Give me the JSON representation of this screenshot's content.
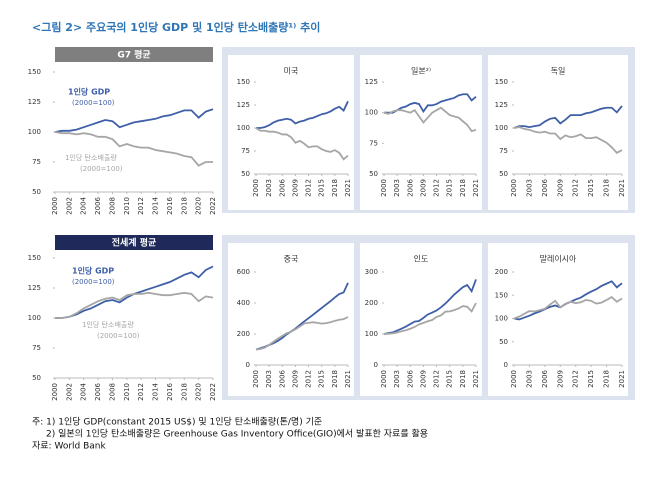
{
  "title": "<그림 2> 주요국의 1인당 GDP 및 1인당 탄소배출량¹⁾ 추이",
  "notes": [
    "주: 1) 1인당 GDP(constant 2015 US$) 및 1인당 탄소배출량(톤/명) 기준",
    "2) 일본의 1인당 탄소배출량은 Greenhouse Gas Inventory Office(GIO)에서 발표한 자료를 활용",
    "자료: World Bank"
  ],
  "chart_data": [
    {
      "type": "line",
      "title": "G7 평균",
      "x": [
        2000,
        2001,
        2002,
        2003,
        2004,
        2005,
        2006,
        2007,
        2008,
        2009,
        2010,
        2011,
        2012,
        2013,
        2014,
        2015,
        2016,
        2017,
        2018,
        2019,
        2020,
        2021,
        2022
      ],
      "xlim": [
        2000,
        2022
      ],
      "xticks": [
        2000,
        2002,
        2004,
        2006,
        2008,
        2010,
        2012,
        2014,
        2016,
        2018,
        2020,
        2022
      ],
      "ylim": [
        50,
        150
      ],
      "yticks": [
        50,
        75,
        100,
        125,
        150
      ],
      "series": [
        {
          "name": "1인당 GDP",
          "color": "#3f5fa8",
          "values": [
            100,
            101,
            101,
            102,
            104,
            106,
            108,
            110,
            109,
            104,
            106,
            108,
            109,
            110,
            111,
            113,
            114,
            116,
            118,
            118,
            112,
            117,
            119
          ]
        },
        {
          "name": "1인당 탄소배출량",
          "color": "#a6a6a6",
          "values": [
            100,
            99,
            99,
            98,
            99,
            98,
            96,
            96,
            94,
            88,
            90,
            88,
            87,
            87,
            85,
            84,
            83,
            82,
            80,
            79,
            72,
            75,
            75
          ]
        }
      ],
      "annotations": [
        "1인당 GDP",
        "(2000=100)",
        "1인당 탄소배출량",
        "(2000=100)"
      ]
    },
    {
      "type": "line",
      "title": "전세계 평균",
      "x": [
        2000,
        2001,
        2002,
        2003,
        2004,
        2005,
        2006,
        2007,
        2008,
        2009,
        2010,
        2011,
        2012,
        2013,
        2014,
        2015,
        2016,
        2017,
        2018,
        2019,
        2020,
        2021,
        2022
      ],
      "xlim": [
        2000,
        2022
      ],
      "xticks": [
        2000,
        2002,
        2004,
        2006,
        2008,
        2010,
        2012,
        2014,
        2016,
        2018,
        2020,
        2022
      ],
      "ylim": [
        50,
        150
      ],
      "yticks": [
        50,
        75,
        100,
        125,
        150
      ],
      "series": [
        {
          "name": "1인당 GDP",
          "color": "#3f5fa8",
          "values": [
            100,
            100,
            101,
            103,
            106,
            108,
            111,
            114,
            115,
            113,
            117,
            120,
            122,
            124,
            126,
            128,
            130,
            133,
            136,
            138,
            134,
            140,
            143
          ]
        },
        {
          "name": "1인당 탄소배출량",
          "color": "#a6a6a6",
          "values": [
            100,
            100,
            101,
            104,
            108,
            111,
            114,
            116,
            117,
            115,
            119,
            120,
            120,
            121,
            120,
            119,
            119,
            120,
            121,
            120,
            114,
            118,
            117
          ]
        }
      ],
      "annotations": [
        "1인당 GDP",
        "(2000=100)",
        "1인당 탄소배출량",
        "(2000=100)"
      ]
    },
    {
      "type": "line",
      "title": "미국",
      "x": [
        2000,
        2001,
        2002,
        2003,
        2004,
        2005,
        2006,
        2007,
        2008,
        2009,
        2010,
        2011,
        2012,
        2013,
        2014,
        2015,
        2016,
        2017,
        2018,
        2019,
        2020,
        2021
      ],
      "xlim": [
        2000,
        2021
      ],
      "xticks": [
        2000,
        2003,
        2006,
        2009,
        2012,
        2015,
        2018,
        2021
      ],
      "ylim": [
        50,
        150
      ],
      "yticks": [
        50,
        75,
        100,
        125,
        150
      ],
      "series": [
        {
          "name": "1인당 GDP",
          "color": "#3f5fa8",
          "values": [
            100,
            100,
            101,
            103,
            106,
            108,
            109,
            110,
            109,
            105,
            107,
            108,
            110,
            111,
            113,
            115,
            116,
            118,
            121,
            123,
            119,
            129
          ]
        },
        {
          "name": "1인당 탄소배출량",
          "color": "#a6a6a6",
          "values": [
            100,
            97,
            97,
            96,
            96,
            95,
            93,
            93,
            90,
            84,
            86,
            83,
            79,
            80,
            80,
            77,
            75,
            74,
            76,
            73,
            66,
            70
          ]
        }
      ]
    },
    {
      "type": "line",
      "title": "일본²⁾",
      "x": [
        2000,
        2001,
        2002,
        2003,
        2004,
        2005,
        2006,
        2007,
        2008,
        2009,
        2010,
        2011,
        2012,
        2013,
        2014,
        2015,
        2016,
        2017,
        2018,
        2019,
        2020,
        2021
      ],
      "xlim": [
        2000,
        2021
      ],
      "xticks": [
        2000,
        2003,
        2006,
        2009,
        2012,
        2015,
        2018,
        2021
      ],
      "ylim": [
        50,
        125
      ],
      "yticks": [
        50,
        75,
        100,
        125
      ],
      "series": [
        {
          "name": "1인당 GDP",
          "color": "#3f5fa8",
          "values": [
            100,
            100,
            100,
            102,
            104,
            105,
            107,
            108,
            107,
            101,
            106,
            106,
            107,
            109,
            110,
            111,
            112,
            114,
            115,
            115,
            110,
            113
          ]
        },
        {
          "name": "1인당 탄소배출량",
          "color": "#a6a6a6",
          "values": [
            100,
            99,
            101,
            102,
            102,
            101,
            100,
            102,
            97,
            92,
            96,
            100,
            102,
            104,
            101,
            98,
            97,
            96,
            93,
            90,
            85,
            86
          ]
        }
      ]
    },
    {
      "type": "line",
      "title": "독일",
      "x": [
        2000,
        2001,
        2002,
        2003,
        2004,
        2005,
        2006,
        2007,
        2008,
        2009,
        2010,
        2011,
        2012,
        2013,
        2014,
        2015,
        2016,
        2017,
        2018,
        2019,
        2020,
        2021
      ],
      "xlim": [
        2000,
        2021
      ],
      "xticks": [
        2000,
        2003,
        2006,
        2009,
        2012,
        2015,
        2018,
        2021
      ],
      "ylim": [
        50,
        150
      ],
      "yticks": [
        50,
        75,
        100,
        125,
        150
      ],
      "series": [
        {
          "name": "1인당 GDP",
          "color": "#3f5fa8",
          "values": [
            100,
            102,
            102,
            101,
            102,
            103,
            107,
            110,
            111,
            105,
            109,
            114,
            114,
            114,
            116,
            117,
            119,
            121,
            122,
            122,
            117,
            124
          ]
        },
        {
          "name": "1인당 탄소배출량",
          "color": "#a6a6a6",
          "values": [
            100,
            101,
            99,
            98,
            96,
            95,
            96,
            94,
            94,
            88,
            92,
            90,
            91,
            93,
            89,
            89,
            90,
            87,
            84,
            79,
            73,
            76
          ]
        }
      ]
    },
    {
      "type": "line",
      "title": "중국",
      "x": [
        2000,
        2001,
        2002,
        2003,
        2004,
        2005,
        2006,
        2007,
        2008,
        2009,
        2010,
        2011,
        2012,
        2013,
        2014,
        2015,
        2016,
        2017,
        2018,
        2019,
        2020,
        2021
      ],
      "xlim": [
        2000,
        2021
      ],
      "xticks": [
        2000,
        2003,
        2006,
        2009,
        2012,
        2015,
        2018,
        2021
      ],
      "ylim": [
        0,
        600
      ],
      "yticks": [
        0,
        200,
        400,
        600
      ],
      "series": [
        {
          "name": "1인당 GDP",
          "color": "#3f5fa8",
          "values": [
            100,
            108,
            117,
            129,
            141,
            156,
            175,
            198,
            216,
            235,
            258,
            281,
            302,
            324,
            346,
            368,
            390,
            412,
            436,
            458,
            468,
            530
          ]
        },
        {
          "name": "1인당 탄소배출량",
          "color": "#a6a6a6",
          "values": [
            100,
            103,
            112,
            130,
            150,
            170,
            188,
            205,
            215,
            230,
            248,
            268,
            272,
            276,
            272,
            267,
            270,
            276,
            285,
            292,
            296,
            310
          ]
        }
      ]
    },
    {
      "type": "line",
      "title": "인도",
      "x": [
        2000,
        2001,
        2002,
        2003,
        2004,
        2005,
        2006,
        2007,
        2008,
        2009,
        2010,
        2011,
        2012,
        2013,
        2014,
        2015,
        2016,
        2017,
        2018,
        2019,
        2020,
        2021
      ],
      "xlim": [
        2000,
        2021
      ],
      "xticks": [
        2000,
        2003,
        2006,
        2009,
        2012,
        2015,
        2018,
        2021
      ],
      "ylim": [
        0,
        300
      ],
      "yticks": [
        0,
        100,
        200,
        300
      ],
      "series": [
        {
          "name": "1인당 GDP",
          "color": "#3f5fa8",
          "values": [
            100,
            103,
            105,
            111,
            117,
            124,
            132,
            140,
            142,
            152,
            163,
            169,
            176,
            186,
            198,
            212,
            227,
            239,
            251,
            258,
            238,
            276
          ]
        },
        {
          "name": "1인당 탄소배출량",
          "color": "#a6a6a6",
          "values": [
            100,
            101,
            102,
            105,
            109,
            112,
            117,
            123,
            131,
            136,
            141,
            145,
            155,
            160,
            172,
            173,
            177,
            182,
            190,
            188,
            173,
            200
          ]
        }
      ]
    },
    {
      "type": "line",
      "title": "말레이시아",
      "x": [
        2000,
        2001,
        2002,
        2003,
        2004,
        2005,
        2006,
        2007,
        2008,
        2009,
        2010,
        2011,
        2012,
        2013,
        2014,
        2015,
        2016,
        2017,
        2018,
        2019,
        2020,
        2021
      ],
      "xlim": [
        2000,
        2021
      ],
      "xticks": [
        2000,
        2003,
        2006,
        2009,
        2012,
        2015,
        2018,
        2021
      ],
      "ylim": [
        0,
        200
      ],
      "yticks": [
        0,
        50,
        100,
        150,
        200
      ],
      "series": [
        {
          "name": "1인당 GDP",
          "color": "#3f5fa8",
          "values": [
            100,
            98,
            102,
            106,
            111,
            115,
            120,
            125,
            128,
            124,
            131,
            136,
            141,
            145,
            152,
            158,
            163,
            170,
            175,
            180,
            167,
            176
          ]
        },
        {
          "name": "1인당 탄소배출량",
          "color": "#a6a6a6",
          "values": [
            100,
            104,
            110,
            116,
            115,
            118,
            121,
            130,
            138,
            124,
            132,
            136,
            133,
            135,
            140,
            138,
            132,
            134,
            140,
            146,
            136,
            143
          ]
        }
      ]
    }
  ]
}
